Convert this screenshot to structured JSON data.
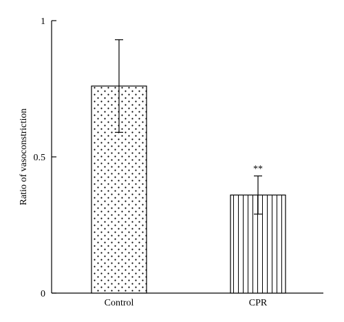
{
  "chart_data": {
    "type": "bar",
    "title": "",
    "xlabel": "",
    "ylabel": "Ratio of vasoconstriction",
    "ylim": [
      0,
      1
    ],
    "yticks": [
      {
        "value": 0,
        "label": "0"
      },
      {
        "value": 0.5,
        "label": "0.5"
      },
      {
        "value": 1,
        "label": "1"
      }
    ],
    "grid": false,
    "categories": [
      "Control",
      "CPR"
    ],
    "values": [
      0.76,
      0.36
    ],
    "errors": [
      0.17,
      0.07
    ],
    "patterns": [
      "dots",
      "vertical-lines"
    ],
    "annotations": [
      "",
      "**"
    ]
  }
}
